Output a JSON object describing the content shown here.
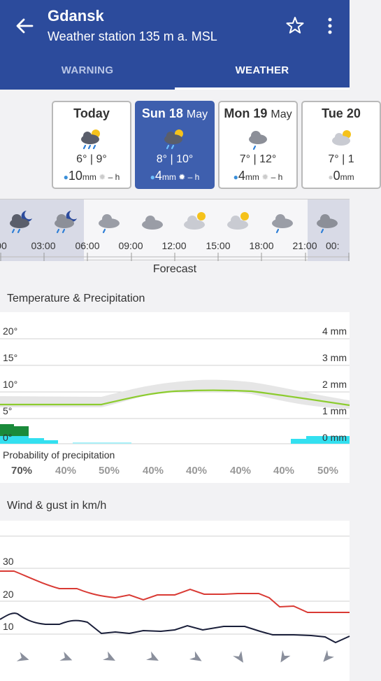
{
  "app_bar": {
    "title": "Gdansk",
    "subtitle": "Weather station 135 m a. MSL",
    "background": "#2c4b9c"
  },
  "tabs": [
    {
      "label": "WARNING",
      "selected": false
    },
    {
      "label": "WEATHER",
      "selected": true
    }
  ],
  "days": [
    {
      "name": "Today",
      "month": "",
      "icon": "cloud-sun-rain-icon",
      "temp": "6° | 9°",
      "precip": "10",
      "precip_unit": "mm",
      "sun": "– h",
      "selected": false
    },
    {
      "name": "Sun 18",
      "month": "May",
      "icon": "cloud-sun-rain-icon",
      "temp": "8° | 10°",
      "precip": "4",
      "precip_unit": "mm",
      "sun": "– h",
      "selected": true
    },
    {
      "name": "Mon 19",
      "month": "May",
      "icon": "cloud-rain-icon",
      "temp": "7° | 12°",
      "precip": "4",
      "precip_unit": "mm",
      "sun": "– h",
      "selected": false
    },
    {
      "name": "Tue 20",
      "month": "",
      "icon": "cloud-sun-icon",
      "temp": "7° | 1",
      "precip": "0",
      "precip_unit": "mm",
      "sun": "",
      "selected": false
    }
  ],
  "hourly": {
    "times": [
      ":00",
      "03:00",
      "06:00",
      "09:00",
      "12:00",
      "15:00",
      "18:00",
      "21:00",
      "00:"
    ],
    "icons": [
      "cloud-moon-rain-icon",
      "cloud-moon-rain-icon",
      "cloud-rain-icon",
      "cloud-icon",
      "cloud-sun-icon",
      "cloud-sun-icon",
      "cloud-rain-icon",
      "cloud-rain-icon"
    ],
    "label": "Forecast"
  },
  "temp_precip": {
    "title": "Temperature & Precipitation",
    "temp_labels": [
      "20°",
      "15°",
      "10°",
      "5°",
      "0°"
    ],
    "precip_labels": [
      "4 mm",
      "3 mm",
      "2 mm",
      "1 mm",
      "0 mm"
    ],
    "pop_title": "Probability of precipitation",
    "pop_values": [
      "70%",
      "40%",
      "50%",
      "40%",
      "40%",
      "40%",
      "40%",
      "50%"
    ],
    "line_color": "#8ccc2e"
  },
  "wind": {
    "title": "Wind & gust in km/h",
    "labels": [
      "30",
      "20",
      "10"
    ],
    "gust_color": "#d93a34",
    "wind_color": "#1a1f3a"
  }
}
